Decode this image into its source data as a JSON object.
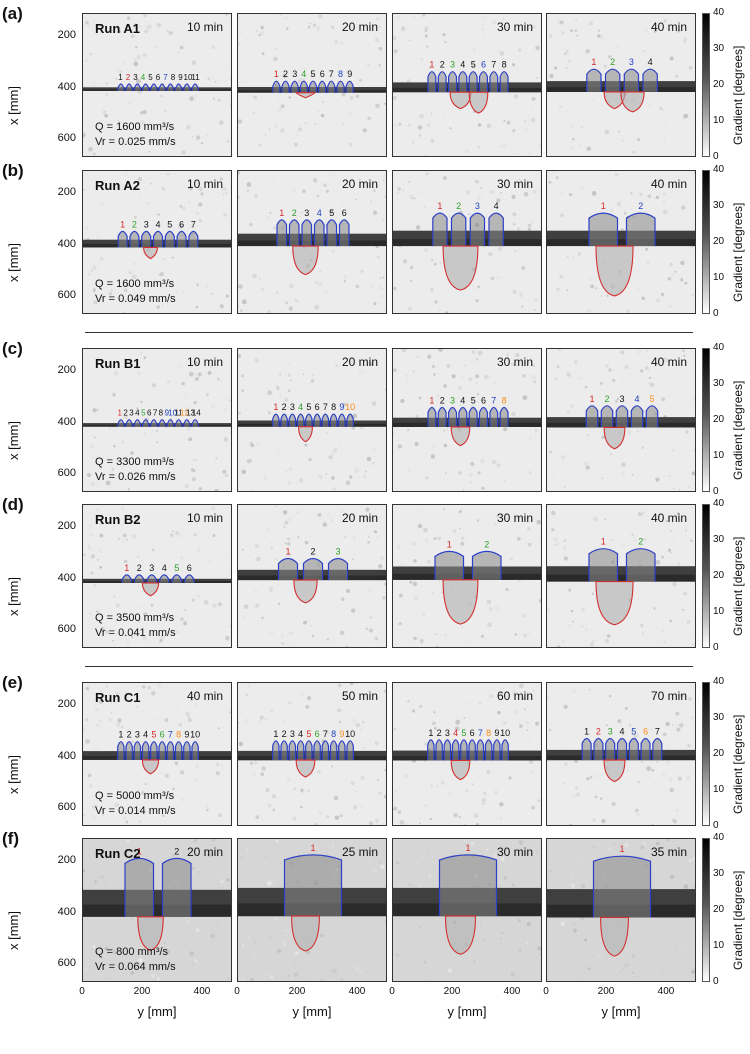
{
  "axis": {
    "y_label": "x [mm]",
    "x_label": "y [mm]",
    "y_ticks": [
      "200",
      "400",
      "600"
    ],
    "x_ticks": [
      "0",
      "200",
      "400"
    ],
    "colorbar_label": "Gradient [degrees]",
    "colorbar_ticks": [
      "40",
      "30",
      "20",
      "10",
      "0"
    ]
  },
  "colors": {
    "label_red": "#d62728",
    "label_green": "#2ca02c",
    "label_blue": "#1f3fbf",
    "label_orange": "#ff8c1a",
    "label_black": "#111111",
    "outline_blue": "#2b3fc8",
    "outline_red": "#d43030"
  },
  "rows": [
    {
      "label": "(a)",
      "run": "Run A1",
      "q": "Q = 1600 mm³/s",
      "vr": "Vr = 0.025 mm/s",
      "panels": [
        {
          "time": "10 min",
          "band_y": 402,
          "band_h": 14,
          "texture": "light",
          "numbers": [
            [
              "1",
              "k"
            ],
            [
              "2",
              "r"
            ],
            [
              "3",
              "k"
            ],
            [
              "4",
              "g"
            ],
            [
              "5",
              "k"
            ],
            [
              "6",
              "k"
            ],
            [
              "7",
              "b"
            ],
            [
              "8",
              "k"
            ],
            [
              "9",
              "k"
            ],
            [
              "10",
              "k"
            ],
            [
              "11",
              "k"
            ]
          ],
          "fans": []
        },
        {
          "time": "20 min",
          "band_y": 405,
          "band_h": 22,
          "texture": "light",
          "numbers": [
            [
              "1",
              "r"
            ],
            [
              "2",
              "k"
            ],
            [
              "3",
              "k"
            ],
            [
              "4",
              "g"
            ],
            [
              "5",
              "k"
            ],
            [
              "6",
              "k"
            ],
            [
              "7",
              "k"
            ],
            [
              "8",
              "b"
            ],
            [
              "9",
              "k"
            ]
          ],
          "fans": [
            [
              400,
              40
            ]
          ]
        },
        {
          "time": "30 min",
          "band_y": 395,
          "band_h": 38,
          "texture": "light",
          "numbers": [
            [
              "1",
              "r"
            ],
            [
              "2",
              "k"
            ],
            [
              "3",
              "g"
            ],
            [
              "4",
              "k"
            ],
            [
              "5",
              "k"
            ],
            [
              "6",
              "b"
            ],
            [
              "7",
              "k"
            ],
            [
              "8",
              "k"
            ]
          ],
          "fans": [
            [
              440,
              45
            ],
            [
              460,
              40
            ]
          ]
        },
        {
          "time": "40 min",
          "band_y": 392,
          "band_h": 42,
          "texture": "light",
          "numbers": [
            [
              "1",
              "r"
            ],
            [
              "2",
              "g"
            ],
            [
              "3",
              "b"
            ],
            [
              "4",
              "k"
            ]
          ],
          "fans": [
            [
              440,
              45
            ],
            [
              450,
              50
            ]
          ]
        }
      ]
    },
    {
      "label": "(b)",
      "run": "Run A2",
      "q": "Q = 1600 mm³/s",
      "vr": "Vr = 0.049 mm/s",
      "panels": [
        {
          "time": "10 min",
          "band_y": 392,
          "band_h": 30,
          "texture": "light",
          "numbers": [
            [
              "1",
              "r"
            ],
            [
              "2",
              "g"
            ],
            [
              "3",
              "k"
            ],
            [
              "4",
              "k"
            ],
            [
              "5",
              "k"
            ],
            [
              "6",
              "k"
            ],
            [
              "7",
              "k"
            ]
          ],
          "fans": [
            [
              420,
              30
            ]
          ]
        },
        {
          "time": "20 min",
          "band_y": 378,
          "band_h": 48,
          "texture": "mid",
          "numbers": [
            [
              "1",
              "r"
            ],
            [
              "2",
              "g"
            ],
            [
              "3",
              "k"
            ],
            [
              "4",
              "b"
            ],
            [
              "5",
              "k"
            ],
            [
              "6",
              "k"
            ]
          ],
          "fans": [
            [
              470,
              55
            ]
          ]
        },
        {
          "time": "30 min",
          "band_y": 372,
          "band_h": 60,
          "texture": "mid",
          "numbers": [
            [
              "1",
              "r"
            ],
            [
              "2",
              "g"
            ],
            [
              "3",
              "b"
            ],
            [
              "4",
              "k"
            ]
          ],
          "fans": [
            [
              520,
              75
            ]
          ]
        },
        {
          "time": "40 min",
          "band_y": 372,
          "band_h": 60,
          "texture": "mid",
          "numbers": [
            [
              "1",
              "r"
            ],
            [
              "2",
              "b"
            ]
          ],
          "fans": [
            [
              540,
              80
            ]
          ]
        }
      ]
    },
    {
      "label": "(c)",
      "run": "Run B1",
      "q": "Q = 3300 mm³/s",
      "vr": "Vr = 0.026 mm/s",
      "panels": [
        {
          "time": "10 min",
          "band_y": 405,
          "band_h": 14,
          "texture": "light",
          "numbers": [
            [
              "1",
              "r"
            ],
            [
              "2",
              "k"
            ],
            [
              "3",
              "k"
            ],
            [
              "4",
              "k"
            ],
            [
              "5",
              "g"
            ],
            [
              "6",
              "k"
            ],
            [
              "7",
              "k"
            ],
            [
              "8",
              "k"
            ],
            [
              "9",
              "b"
            ],
            [
              "10",
              "b"
            ],
            [
              "11",
              "k"
            ],
            [
              "12",
              "o"
            ],
            [
              "13",
              "k"
            ],
            [
              "14",
              "k"
            ]
          ],
          "fans": []
        },
        {
          "time": "20 min",
          "band_y": 400,
          "band_h": 24,
          "texture": "light",
          "numbers": [
            [
              "1",
              "r"
            ],
            [
              "2",
              "k"
            ],
            [
              "3",
              "k"
            ],
            [
              "4",
              "g"
            ],
            [
              "5",
              "k"
            ],
            [
              "6",
              "k"
            ],
            [
              "7",
              "k"
            ],
            [
              "8",
              "k"
            ],
            [
              "9",
              "b"
            ],
            [
              "10",
              "o"
            ]
          ],
          "fans": [
            [
              440,
              30
            ]
          ]
        },
        {
          "time": "30 min",
          "band_y": 395,
          "band_h": 36,
          "texture": "light",
          "numbers": [
            [
              "1",
              "r"
            ],
            [
              "2",
              "k"
            ],
            [
              "3",
              "g"
            ],
            [
              "4",
              "k"
            ],
            [
              "5",
              "k"
            ],
            [
              "6",
              "k"
            ],
            [
              "7",
              "b"
            ],
            [
              "8",
              "o"
            ]
          ],
          "fans": [
            [
              450,
              40
            ]
          ]
        },
        {
          "time": "40 min",
          "band_y": 395,
          "band_h": 40,
          "texture": "light",
          "numbers": [
            [
              "1",
              "r"
            ],
            [
              "2",
              "g"
            ],
            [
              "3",
              "k"
            ],
            [
              "4",
              "b"
            ],
            [
              "5",
              "o"
            ]
          ],
          "fans": [
            [
              460,
              45
            ]
          ]
        }
      ]
    },
    {
      "label": "(d)",
      "run": "Run B2",
      "q": "Q = 3500 mm³/s",
      "vr": "Vr = 0.041 mm/s",
      "panels": [
        {
          "time": "10 min",
          "band_y": 405,
          "band_h": 16,
          "texture": "light",
          "numbers": [
            [
              "1",
              "r"
            ],
            [
              "2",
              "k"
            ],
            [
              "3",
              "k"
            ],
            [
              "4",
              "k"
            ],
            [
              "5",
              "g"
            ],
            [
              "6",
              "k"
            ]
          ],
          "fans": [
            [
              430,
              35
            ]
          ]
        },
        {
          "time": "20 min",
          "band_y": 382,
          "band_h": 40,
          "texture": "light",
          "numbers": [
            [
              "1",
              "r"
            ],
            [
              "2",
              "k"
            ],
            [
              "3",
              "g"
            ]
          ],
          "fans": [
            [
              450,
              50
            ]
          ]
        },
        {
          "time": "30 min",
          "band_y": 375,
          "band_h": 52,
          "texture": "light",
          "numbers": [
            [
              "1",
              "r"
            ],
            [
              "2",
              "g"
            ]
          ],
          "fans": [
            [
              520,
              75
            ]
          ]
        },
        {
          "time": "40 min",
          "band_y": 378,
          "band_h": 60,
          "texture": "light",
          "numbers": [
            [
              "1",
              "r"
            ],
            [
              "2",
              "g"
            ]
          ],
          "fans": [
            [
              520,
              80
            ]
          ]
        }
      ]
    },
    {
      "label": "(e)",
      "run": "Run C1",
      "q": "Q = 5000 mm³/s",
      "vr": "Vr = 0.014 mm/s",
      "panels": [
        {
          "time": "40 min",
          "band_y": 392,
          "band_h": 34,
          "texture": "light",
          "numbers": [
            [
              "1",
              "k"
            ],
            [
              "2",
              "k"
            ],
            [
              "3",
              "k"
            ],
            [
              "4",
              "k"
            ],
            [
              "5",
              "r"
            ],
            [
              "6",
              "g"
            ],
            [
              "7",
              "b"
            ],
            [
              "8",
              "o"
            ],
            [
              "9",
              "k"
            ],
            [
              "10",
              "k"
            ]
          ],
          "fans": [
            [
              430,
              35
            ]
          ]
        },
        {
          "time": "50 min",
          "band_y": 392,
          "band_h": 36,
          "texture": "light",
          "numbers": [
            [
              "1",
              "k"
            ],
            [
              "2",
              "k"
            ],
            [
              "3",
              "k"
            ],
            [
              "4",
              "k"
            ],
            [
              "5",
              "r"
            ],
            [
              "6",
              "g"
            ],
            [
              "7",
              "k"
            ],
            [
              "8",
              "b"
            ],
            [
              "9",
              "o"
            ],
            [
              "10",
              "k"
            ]
          ],
          "fans": [
            [
              440,
              40
            ]
          ]
        },
        {
          "time": "60 min",
          "band_y": 392,
          "band_h": 38,
          "texture": "light",
          "numbers": [
            [
              "1",
              "k"
            ],
            [
              "2",
              "k"
            ],
            [
              "3",
              "k"
            ],
            [
              "4",
              "r"
            ],
            [
              "5",
              "g"
            ],
            [
              "6",
              "k"
            ],
            [
              "7",
              "b"
            ],
            [
              "8",
              "o"
            ],
            [
              "9",
              "k"
            ],
            [
              "10",
              "k"
            ]
          ],
          "fans": [
            [
              450,
              40
            ]
          ]
        },
        {
          "time": "70 min",
          "band_y": 390,
          "band_h": 40,
          "texture": "light",
          "numbers": [
            [
              "1",
              "k"
            ],
            [
              "2",
              "r"
            ],
            [
              "3",
              "g"
            ],
            [
              "4",
              "k"
            ],
            [
              "5",
              "b"
            ],
            [
              "6",
              "o"
            ],
            [
              "7",
              "k"
            ]
          ],
          "fans": [
            [
              455,
              45
            ]
          ]
        }
      ]
    },
    {
      "label": "(f)",
      "run": "Run C2",
      "q": "Q = 800 mm³/s",
      "vr": "Vr = 0.064 mm/s",
      "panels": [
        {
          "time": "20 min",
          "band_y": 360,
          "band_h": 105,
          "texture": "dark",
          "numbers": [
            [
              "1",
              "r"
            ],
            [
              "2",
              "k"
            ]
          ],
          "fans": [
            [
              500,
              55
            ]
          ]
        },
        {
          "time": "25 min",
          "band_y": 355,
          "band_h": 110,
          "texture": "dark",
          "numbers": [
            [
              "1",
              "r"
            ]
          ],
          "fans": [
            [
              500,
              60
            ]
          ]
        },
        {
          "time": "30 min",
          "band_y": 355,
          "band_h": 110,
          "texture": "dark",
          "numbers": [
            [
              "1",
              "r"
            ]
          ],
          "fans": [
            [
              510,
              65
            ]
          ]
        },
        {
          "time": "35 min",
          "band_y": 360,
          "band_h": 110,
          "texture": "dark",
          "numbers": [
            [
              "1",
              "r"
            ]
          ],
          "fans": [
            [
              520,
              60
            ]
          ]
        }
      ]
    }
  ]
}
